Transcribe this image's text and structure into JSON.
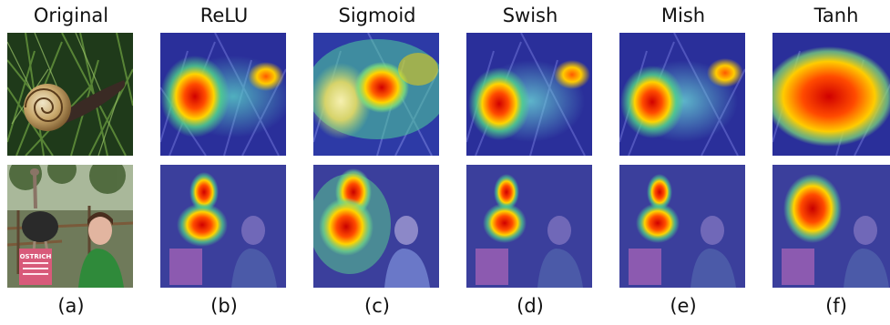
{
  "figure": {
    "columns": [
      {
        "title": "Original",
        "caption": "(a)"
      },
      {
        "title": "ReLU",
        "caption": "(b)"
      },
      {
        "title": "Sigmoid",
        "caption": "(c)"
      },
      {
        "title": "Swish",
        "caption": "(d)"
      },
      {
        "title": "Mish",
        "caption": "(e)"
      },
      {
        "title": "Tanh",
        "caption": "(f)"
      }
    ],
    "rows": [
      {
        "subject": "snail"
      },
      {
        "subject": "ostrich"
      }
    ],
    "sign": {
      "text": "OSTRICH"
    }
  }
}
